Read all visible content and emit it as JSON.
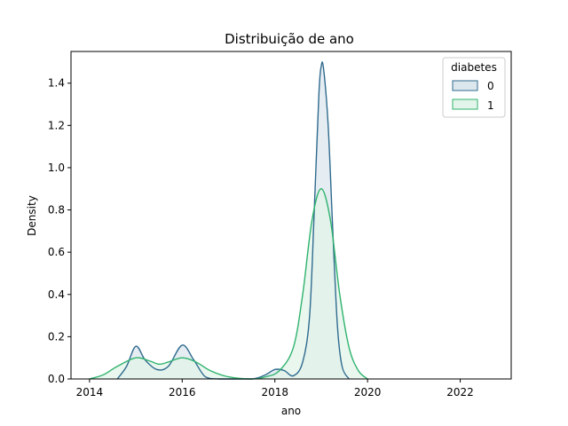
{
  "chart_data": {
    "type": "area",
    "title": "Distribuição de ano",
    "xlabel": "ano",
    "ylabel": "Density",
    "xlim": [
      2013.6,
      2023.1
    ],
    "ylim": [
      0,
      1.55
    ],
    "xticks": [
      2014,
      2016,
      2018,
      2020,
      2022
    ],
    "yticks": [
      0.0,
      0.2,
      0.4,
      0.6,
      0.8,
      1.0,
      1.2,
      1.4
    ],
    "xtick_labels": [
      "2014",
      "2016",
      "2018",
      "2020",
      "2022"
    ],
    "ytick_labels": [
      "0.0",
      "0.2",
      "0.4",
      "0.6",
      "0.8",
      "1.0",
      "1.2",
      "1.4"
    ],
    "legend": {
      "title": "diabetes",
      "placement": "top-right"
    },
    "grid": false,
    "series": [
      {
        "name": "0",
        "color": "#2f6b8e",
        "fill_color": "#dce6ed",
        "points": [
          [
            2014.6,
            0.0
          ],
          [
            2014.8,
            0.06
          ],
          [
            2015.0,
            0.155
          ],
          [
            2015.2,
            0.09
          ],
          [
            2015.45,
            0.045
          ],
          [
            2015.7,
            0.06
          ],
          [
            2016.0,
            0.16
          ],
          [
            2016.25,
            0.09
          ],
          [
            2016.5,
            0.01
          ],
          [
            2016.8,
            0.0
          ],
          [
            2017.5,
            0.0
          ],
          [
            2017.8,
            0.02
          ],
          [
            2018.0,
            0.045
          ],
          [
            2018.2,
            0.04
          ],
          [
            2018.4,
            0.015
          ],
          [
            2018.6,
            0.08
          ],
          [
            2018.75,
            0.3
          ],
          [
            2018.85,
            0.8
          ],
          [
            2018.95,
            1.35
          ],
          [
            2019.0,
            1.48
          ],
          [
            2019.05,
            1.47
          ],
          [
            2019.15,
            1.2
          ],
          [
            2019.25,
            0.7
          ],
          [
            2019.35,
            0.25
          ],
          [
            2019.45,
            0.06
          ],
          [
            2019.6,
            0.0
          ]
        ]
      },
      {
        "name": "1",
        "color": "#2fb36e",
        "fill_color": "#e3f4ea",
        "points": [
          [
            2014.0,
            0.0
          ],
          [
            2014.3,
            0.02
          ],
          [
            2014.6,
            0.06
          ],
          [
            2015.0,
            0.1
          ],
          [
            2015.3,
            0.085
          ],
          [
            2015.5,
            0.07
          ],
          [
            2015.7,
            0.08
          ],
          [
            2016.0,
            0.1
          ],
          [
            2016.3,
            0.08
          ],
          [
            2016.6,
            0.04
          ],
          [
            2017.0,
            0.01
          ],
          [
            2017.5,
            0.0
          ],
          [
            2017.8,
            0.01
          ],
          [
            2018.1,
            0.04
          ],
          [
            2018.4,
            0.15
          ],
          [
            2018.6,
            0.4
          ],
          [
            2018.8,
            0.75
          ],
          [
            2019.0,
            0.9
          ],
          [
            2019.2,
            0.75
          ],
          [
            2019.4,
            0.4
          ],
          [
            2019.6,
            0.15
          ],
          [
            2019.8,
            0.04
          ],
          [
            2020.0,
            0.0
          ]
        ]
      }
    ]
  }
}
